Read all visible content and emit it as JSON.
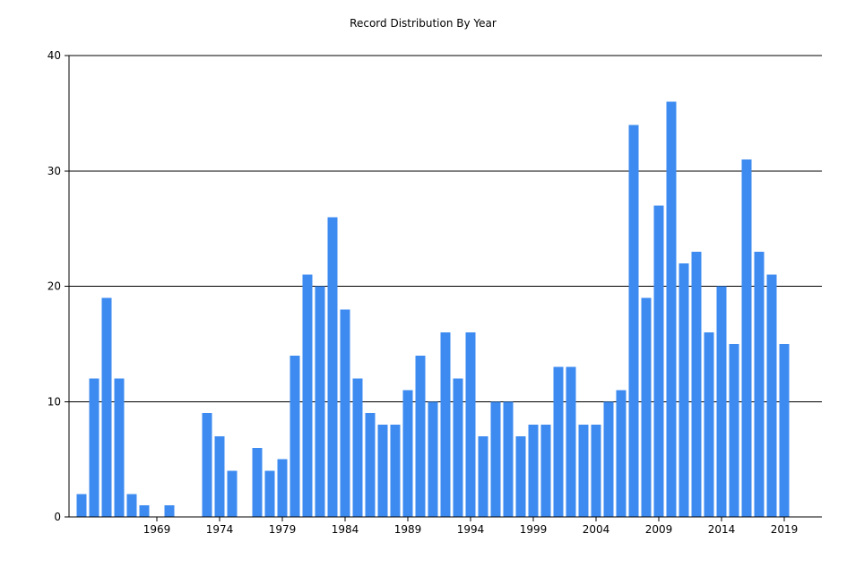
{
  "chart_data": {
    "type": "bar",
    "title": "Record Distribution By Year",
    "xlabel": "",
    "ylabel": "",
    "ylim": [
      0,
      40
    ],
    "yticks": [
      0,
      10,
      20,
      30,
      40
    ],
    "xticks": [
      1969,
      1974,
      1979,
      1984,
      1989,
      1994,
      1999,
      2004,
      2009,
      2014,
      2019
    ],
    "x_range": [
      1962,
      2022
    ],
    "grid": "horizontal",
    "bar_color": "#3d8bf0",
    "categories": [
      1963,
      1964,
      1965,
      1966,
      1967,
      1968,
      1969,
      1970,
      1971,
      1972,
      1973,
      1974,
      1975,
      1976,
      1977,
      1978,
      1979,
      1980,
      1981,
      1982,
      1983,
      1984,
      1985,
      1986,
      1987,
      1988,
      1989,
      1990,
      1991,
      1992,
      1993,
      1994,
      1995,
      1996,
      1997,
      1998,
      1999,
      2000,
      2001,
      2002,
      2003,
      2004,
      2005,
      2006,
      2007,
      2008,
      2009,
      2010,
      2011,
      2012,
      2013,
      2014,
      2015,
      2016,
      2017,
      2018,
      2019,
      2020,
      2021
    ],
    "values": [
      2,
      12,
      19,
      12,
      2,
      1,
      0,
      1,
      0,
      0,
      9,
      7,
      4,
      0,
      6,
      4,
      5,
      14,
      21,
      20,
      26,
      18,
      12,
      9,
      8,
      8,
      11,
      14,
      10,
      16,
      12,
      16,
      7,
      10,
      10,
      7,
      8,
      8,
      13,
      13,
      8,
      8,
      10,
      11,
      34,
      19,
      27,
      36,
      22,
      23,
      16,
      20,
      15,
      31,
      23,
      21,
      15,
      0,
      0
    ]
  }
}
